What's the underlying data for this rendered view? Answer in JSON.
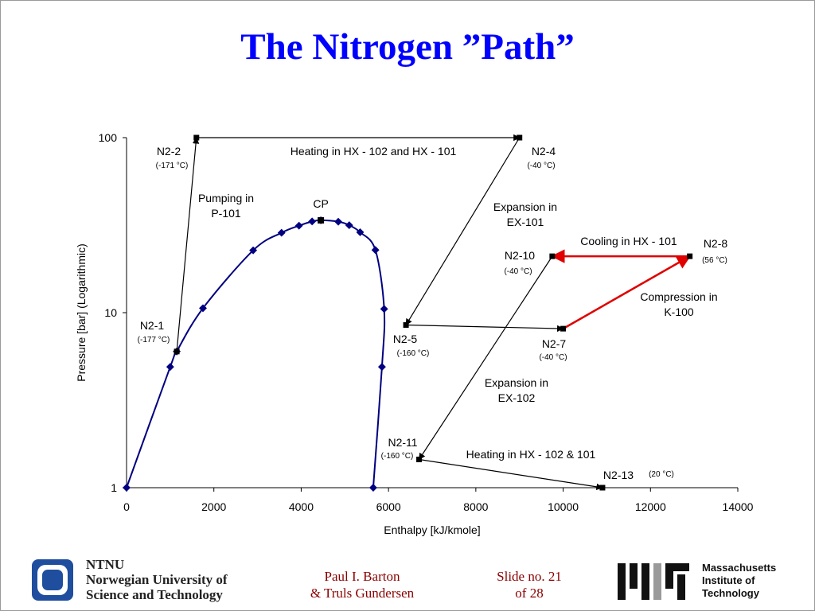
{
  "slide": {
    "title": "The Nitrogen ”Path”",
    "title_color": "#0000ff",
    "footer": {
      "author_line1": "Paul I. Barton",
      "author_line2": "& Truls Gundersen",
      "slide_line1": "Slide no. 21",
      "slide_line2": "of 28",
      "text_color": "#8b0000",
      "ntnu_line1": "NTNU",
      "ntnu_line2": "Norwegian University of",
      "ntnu_line3": "Science and Technology",
      "mit_line1": "Massachusetts",
      "mit_line2": "Institute of",
      "mit_line3": "Technology"
    }
  },
  "chart_data": {
    "type": "scatter",
    "title": "",
    "xlabel": "Enthalpy [kJ/kmole]",
    "ylabel": "Pressure [bar] (Logarithmic)",
    "xlim": [
      0,
      14000
    ],
    "ylim": [
      1,
      100
    ],
    "y_scale": "log",
    "x_ticks": [
      "0",
      "2000",
      "4000",
      "6000",
      "8000",
      "10000",
      "12000",
      "14000"
    ],
    "y_ticks": [
      "1",
      "10",
      "100"
    ],
    "grid": false,
    "colors": {
      "dome": "#000080",
      "path": "#000000",
      "highlight": "#e00000"
    },
    "series": [
      {
        "name": "",
        "role": "dome",
        "x": [
          0,
          1000,
          1150,
          1750,
          2900,
          3550,
          3950,
          4250,
          4450,
          4850,
          5100,
          5350,
          5700,
          5900,
          5850,
          5650
        ],
        "y": [
          1,
          4.9,
          6,
          10.6,
          22.7,
          28.6,
          31.4,
          33.2,
          33.7,
          33.1,
          31.6,
          28.8,
          22.8,
          10.5,
          4.9,
          1
        ]
      }
    ],
    "critical_point": {
      "label": "CP",
      "x": 4450,
      "y": 33.7
    },
    "states": [
      {
        "id": "n2-1",
        "name": "N2-1",
        "temp": "(-177 °C)",
        "x": 1150,
        "y": 6.0
      },
      {
        "id": "n2-2",
        "name": "N2-2",
        "temp": "(-171 °C)",
        "x": 1600,
        "y": 100
      },
      {
        "id": "n2-4",
        "name": "N2-4",
        "temp": "(-40 °C)",
        "x": 9000,
        "y": 100
      },
      {
        "id": "n2-5",
        "name": "N2-5",
        "temp": "(-160 °C)",
        "x": 6400,
        "y": 8.5
      },
      {
        "id": "n2-7",
        "name": "N2-7",
        "temp": "(-40 °C)",
        "x": 10000,
        "y": 8.1
      },
      {
        "id": "n2-8",
        "name": "N2-8",
        "temp": "(56 °C)",
        "x": 12900,
        "y": 21
      },
      {
        "id": "n2-10",
        "name": "N2-10",
        "temp": "(-40 °C)",
        "x": 9750,
        "y": 21
      },
      {
        "id": "n2-11",
        "name": "N2-11",
        "temp": "(-160 °C)",
        "x": 6700,
        "y": 1.45
      },
      {
        "id": "n2-13",
        "name": "N2-13",
        "temp": "(20 °C)",
        "x": 10900,
        "y": 1
      }
    ],
    "paths": [
      {
        "from": "n2-1",
        "to": "n2-2",
        "highlight": false
      },
      {
        "from": "n2-2",
        "to": "n2-4",
        "highlight": false
      },
      {
        "from": "n2-4",
        "to": "n2-5",
        "highlight": false
      },
      {
        "from": "n2-5",
        "to": "n2-7",
        "highlight": false
      },
      {
        "from": "n2-7",
        "to": "n2-8",
        "highlight": true
      },
      {
        "from": "n2-8",
        "to": "n2-10",
        "highlight": true
      },
      {
        "from": "n2-10",
        "to": "n2-11",
        "highlight": false
      },
      {
        "from": "n2-11",
        "to": "n2-13",
        "highlight": false
      }
    ],
    "annotations": [
      {
        "id": "pumping",
        "lines": [
          "Pumping in",
          "P-101"
        ]
      },
      {
        "id": "heating-top",
        "lines": [
          "Heating in HX - 102 and HX - 101"
        ]
      },
      {
        "id": "expansion-101",
        "lines": [
          "Expansion in",
          "EX-101"
        ]
      },
      {
        "id": "cooling",
        "lines": [
          "Cooling in HX - 101"
        ]
      },
      {
        "id": "compression",
        "lines": [
          "Compression in",
          "K-100"
        ]
      },
      {
        "id": "expansion-102",
        "lines": [
          "Expansion in",
          "EX-102"
        ]
      },
      {
        "id": "heating-bottom",
        "lines": [
          "Heating in HX - 102 & 101"
        ]
      }
    ]
  }
}
